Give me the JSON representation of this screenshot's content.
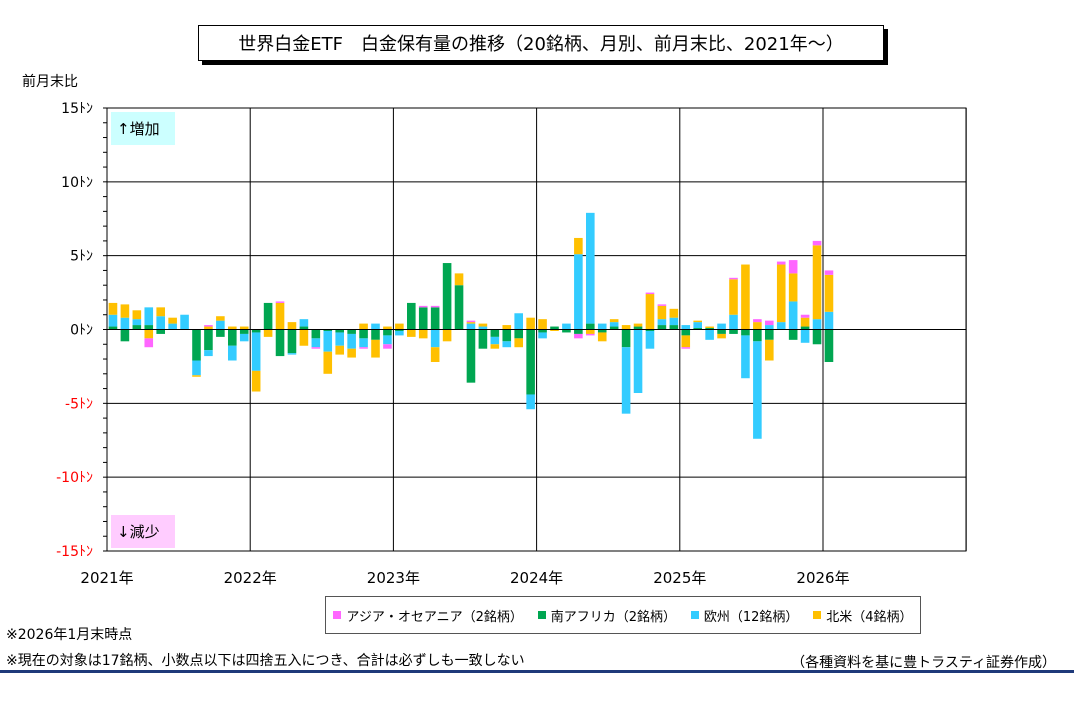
{
  "title": "世界白金ETF　白金保有量の推移（20銘柄、月別、前月末比、2021年〜）",
  "y_unit_label": "前月末比",
  "notes": [
    "※2026年1月末時点",
    "※現在の対象は17銘柄、小数点以下は四捨五入につき、合計は必ずしも一致しない"
  ],
  "source": "（各種資料を基に豊トラスティ証券作成）",
  "annotations": {
    "increase": "↑増加",
    "decrease": "↓減少"
  },
  "colors": {
    "asia": "#ff66ff",
    "sa": "#00a651",
    "eu": "#33ccff",
    "na": "#ffc000",
    "increase_bg": "#ccffff",
    "decrease_bg": "#ffccff",
    "negative_tick": "#ff0000"
  },
  "chart_data": {
    "type": "bar",
    "stacked": true,
    "ylim": [
      -15,
      15
    ],
    "y_ticks": [
      {
        "value": 15,
        "label": "15ﾄﾝ"
      },
      {
        "value": 10,
        "label": "10ﾄﾝ"
      },
      {
        "value": 5,
        "label": "5ﾄﾝ"
      },
      {
        "value": 0,
        "label": "0ﾄﾝ"
      },
      {
        "value": -5,
        "label": "-5ﾄﾝ"
      },
      {
        "value": -10,
        "label": "-10ﾄﾝ"
      },
      {
        "value": -15,
        "label": "-15ﾄﾝ"
      }
    ],
    "x_ticks": [
      "2021年",
      "2022年",
      "2023年",
      "2024年",
      "2025年",
      "2026年"
    ],
    "grid": true,
    "legend_position": "bottom",
    "months": [
      "2021-01",
      "2021-02",
      "2021-03",
      "2021-04",
      "2021-05",
      "2021-06",
      "2021-07",
      "2021-08",
      "2021-09",
      "2021-10",
      "2021-11",
      "2021-12",
      "2022-01",
      "2022-02",
      "2022-03",
      "2022-04",
      "2022-05",
      "2022-06",
      "2022-07",
      "2022-08",
      "2022-09",
      "2022-10",
      "2022-11",
      "2022-12",
      "2023-01",
      "2023-02",
      "2023-03",
      "2023-04",
      "2023-05",
      "2023-06",
      "2023-07",
      "2023-08",
      "2023-09",
      "2023-10",
      "2023-11",
      "2023-12",
      "2024-01",
      "2024-02",
      "2024-03",
      "2024-04",
      "2024-05",
      "2024-06",
      "2024-07",
      "2024-08",
      "2024-09",
      "2024-10",
      "2024-11",
      "2024-12",
      "2025-01",
      "2025-02",
      "2025-03",
      "2025-04",
      "2025-05",
      "2025-06",
      "2025-07",
      "2025-08",
      "2025-09",
      "2025-10",
      "2025-11",
      "2025-12",
      "2026-01"
    ],
    "series": [
      {
        "name": "アジア・オセアニア（2銘柄）",
        "color_key": "asia",
        "values": [
          0,
          0,
          0,
          -0.6,
          0,
          0,
          0,
          0,
          0.1,
          0,
          0,
          0,
          0,
          0,
          0.1,
          0,
          0,
          -0.1,
          0,
          0,
          0,
          -0.1,
          0,
          -0.3,
          0,
          0,
          0.1,
          0.1,
          0,
          0,
          0.1,
          0,
          0,
          0,
          0,
          0,
          0,
          0,
          0,
          -0.3,
          -0.1,
          0,
          0,
          0,
          0,
          0.1,
          0.1,
          0,
          -0.1,
          0,
          0,
          0,
          0.1,
          0,
          0.2,
          0.3,
          0.2,
          0.9,
          0.2,
          0.3,
          0.3
        ]
      },
      {
        "name": "南アフリカ（2銘柄）",
        "color_key": "sa",
        "values": [
          0.2,
          -0.8,
          0.3,
          0.3,
          -0.3,
          0,
          0,
          -2.1,
          -1.4,
          -0.5,
          -1.1,
          -0.3,
          -0.2,
          1.8,
          -1.8,
          -1.6,
          0.2,
          -0.6,
          -0.1,
          -0.2,
          -0.3,
          -0.6,
          -0.7,
          -0.4,
          -0.1,
          1.8,
          1.5,
          1.5,
          4.5,
          3.0,
          -3.6,
          -1.3,
          -0.5,
          -0.8,
          -0.6,
          -4.4,
          -0.2,
          0.2,
          -0.2,
          -0.3,
          0.4,
          -0.2,
          0.2,
          -1.2,
          0.2,
          -0.1,
          0.3,
          0.3,
          -0.4,
          0.1,
          0.1,
          -0.3,
          -0.3,
          -0.4,
          -0.8,
          -0.7,
          0,
          -0.7,
          0.2,
          -1.0,
          -2.2
        ]
      },
      {
        "name": "欧州（12銘柄）",
        "color_key": "eu",
        "values": [
          0.8,
          0.8,
          0.4,
          1.2,
          0.9,
          0.4,
          1.0,
          -1.0,
          -0.4,
          0.6,
          -1.0,
          -0.5,
          -2.6,
          0,
          0,
          -0.1,
          0.5,
          -0.6,
          -1.4,
          -0.9,
          -1.0,
          -0.6,
          0.4,
          -0.6,
          -0.3,
          0,
          0,
          -1.2,
          0,
          0,
          0.4,
          0.2,
          -0.5,
          -0.4,
          1.1,
          -1.0,
          -0.4,
          0,
          0.4,
          5.1,
          7.5,
          0.4,
          0.3,
          -4.5,
          -4.3,
          -1.2,
          0.4,
          0.5,
          0.3,
          0.4,
          -0.7,
          0.4,
          1.0,
          -2.9,
          -6.6,
          0.3,
          0.5,
          1.9,
          -0.9,
          0.7,
          1.2
        ]
      },
      {
        "name": "北米（4銘柄）",
        "color_key": "na",
        "values": [
          0.8,
          0.9,
          0.6,
          -0.6,
          0.6,
          0.4,
          0,
          -0.1,
          0.2,
          0.3,
          0.2,
          0.2,
          -1.4,
          -0.5,
          1.8,
          0.5,
          -1.1,
          0,
          -1.5,
          -0.6,
          -0.6,
          0.4,
          -1.2,
          0.2,
          0.4,
          -0.5,
          -0.6,
          -1.0,
          -0.8,
          0.8,
          0.1,
          0.2,
          -0.3,
          0.3,
          -0.6,
          0.8,
          0.7,
          -0.1,
          0,
          1.1,
          -0.3,
          -0.6,
          0.2,
          0.3,
          0.2,
          2.4,
          0.9,
          0.6,
          -0.8,
          0.1,
          0.1,
          -0.3,
          2.4,
          4.4,
          0.5,
          -1.4,
          3.9,
          1.9,
          0.6,
          5.0,
          2.5
        ]
      }
    ]
  }
}
